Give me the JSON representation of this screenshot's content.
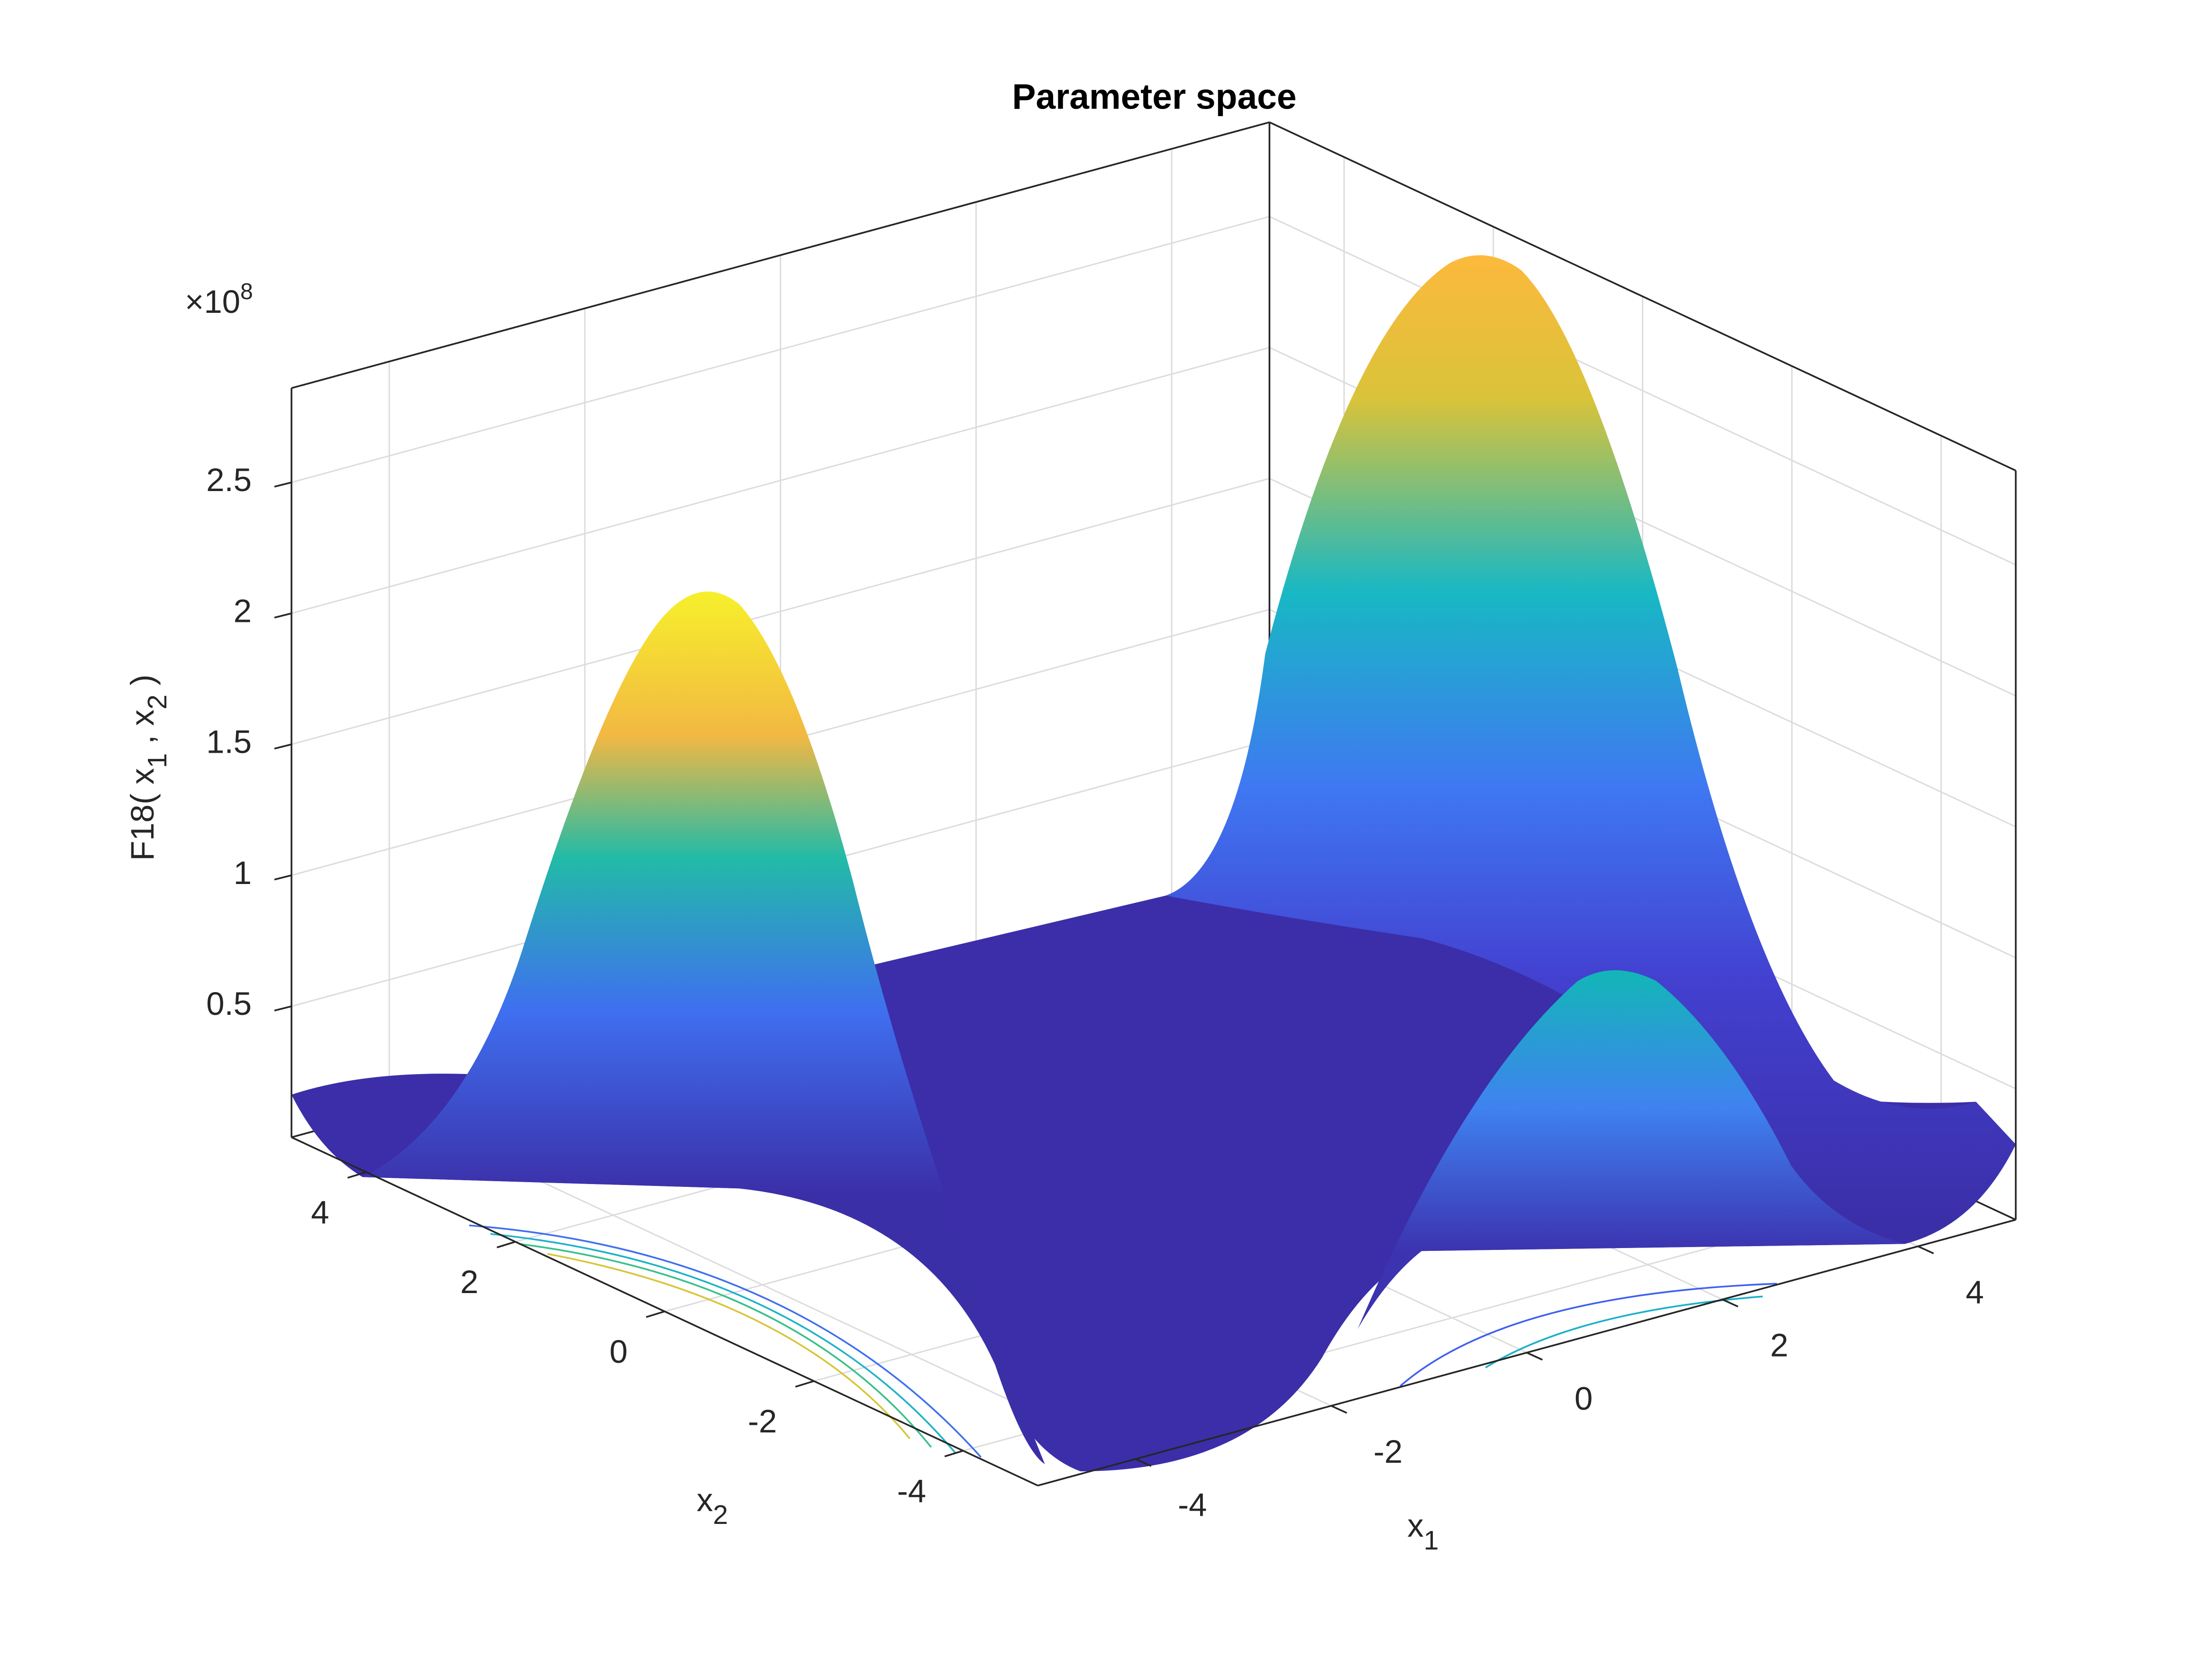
{
  "chart_data": {
    "type": "surface3d",
    "title": "Parameter space",
    "x_label": "x",
    "x_label_sub": "1",
    "y_label": "x",
    "y_label_sub": "2",
    "z_label_parts": [
      "F18( x",
      "1",
      " , x",
      "2",
      " )"
    ],
    "z_multiplier": "×10",
    "z_exponent": "8",
    "xlim": [
      -5,
      5
    ],
    "xticks": [
      -4,
      -2,
      0,
      2,
      4
    ],
    "ylim": [
      -5,
      5
    ],
    "yticks": [
      -4,
      -2,
      0,
      2,
      4
    ],
    "zlim": [
      0,
      2.86
    ],
    "zticks": [
      0.5,
      1,
      1.5,
      2,
      2.5
    ],
    "grid": true
  }
}
